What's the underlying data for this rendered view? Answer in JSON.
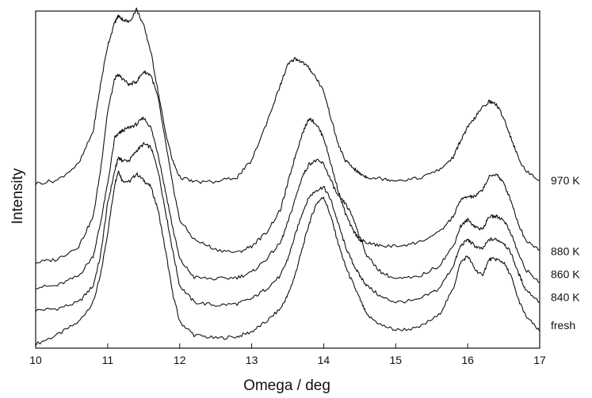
{
  "chart_data": {
    "type": "line",
    "xlabel": "Omega / deg",
    "ylabel": "Intensity",
    "xlim": [
      10,
      17
    ],
    "ylim": [
      0,
      100
    ],
    "x_ticks": [
      "10",
      "11",
      "12",
      "13",
      "14",
      "15",
      "16",
      "17"
    ],
    "grid": false,
    "legend": "right-side labels next to each curve",
    "x": [
      10.0,
      10.3,
      10.6,
      10.8,
      10.9,
      11.0,
      11.1,
      11.15,
      11.2,
      11.3,
      11.4,
      11.5,
      11.6,
      11.7,
      11.8,
      11.9,
      12.0,
      12.2,
      12.5,
      12.8,
      13.0,
      13.2,
      13.4,
      13.5,
      13.6,
      13.7,
      13.8,
      13.9,
      14.0,
      14.1,
      14.2,
      14.3,
      14.4,
      14.5,
      14.6,
      14.8,
      15.0,
      15.3,
      15.6,
      15.8,
      15.9,
      16.0,
      16.1,
      16.2,
      16.3,
      16.4,
      16.5,
      16.6,
      16.7,
      16.8,
      17.0
    ],
    "series": [
      {
        "name": "fresh",
        "values": [
          1.2,
          4.0,
          8.0,
          14.0,
          22.0,
          35.0,
          50.0,
          54.0,
          51.0,
          50.5,
          53.0,
          51.0,
          49.0,
          42.0,
          30.0,
          17.0,
          8.0,
          4.0,
          3.0,
          3.5,
          5.0,
          8.0,
          12.0,
          16.0,
          22.0,
          30.0,
          38.0,
          44.0,
          46.0,
          40.0,
          32.0,
          25.0,
          20.0,
          15.0,
          10.0,
          7.0,
          5.5,
          6.0,
          10.0,
          18.0,
          26.0,
          28.0,
          24.0,
          22.0,
          27.0,
          27.0,
          26.0,
          22.0,
          15.0,
          10.0,
          5.0
        ]
      },
      {
        "name": "840 K",
        "values": [
          11.5,
          12.0,
          14.0,
          19.0,
          28.0,
          44.0,
          54.0,
          58.0,
          57.0,
          57.0,
          60.0,
          62.0,
          61.0,
          54.0,
          42.0,
          30.0,
          19.0,
          14.0,
          13.0,
          13.5,
          15.0,
          18.0,
          22.0,
          27.0,
          34.0,
          41.0,
          46.0,
          48.0,
          49.0,
          45.0,
          38.0,
          31.0,
          26.0,
          22.0,
          19.0,
          15.5,
          14.0,
          14.5,
          18.0,
          25.0,
          31.0,
          33.0,
          31.0,
          30.0,
          33.0,
          33.0,
          32.0,
          29.0,
          23.0,
          18.0,
          14.0
        ]
      },
      {
        "name": "860 K",
        "values": [
          18.5,
          19.0,
          22.0,
          28.0,
          38.0,
          50.0,
          64.0,
          65.0,
          66.0,
          67.0,
          68.0,
          70.0,
          67.0,
          59.0,
          48.0,
          37.0,
          27.0,
          21.5,
          21.0,
          21.5,
          23.0,
          27.0,
          32.0,
          38.0,
          45.0,
          52.0,
          56.0,
          57.0,
          56.0,
          51.0,
          46.0,
          44.0,
          40.0,
          34.0,
          28.0,
          23.0,
          21.0,
          21.5,
          25.0,
          31.0,
          37.0,
          39.0,
          37.0,
          36.0,
          40.0,
          40.0,
          39.0,
          35.0,
          29.0,
          24.0,
          20.0
        ]
      },
      {
        "name": "880 K",
        "values": [
          26.0,
          27.0,
          31.0,
          40.0,
          54.0,
          72.0,
          82.0,
          83.0,
          82.0,
          80.0,
          81.0,
          84.0,
          83.0,
          76.0,
          63.0,
          50.0,
          39.0,
          33.0,
          30.0,
          29.0,
          31.0,
          35.0,
          42.0,
          50.0,
          58.0,
          65.0,
          70.0,
          68.0,
          64.0,
          56.0,
          48.0,
          41.0,
          36.0,
          33.0,
          32.0,
          31.0,
          31.0,
          32.0,
          35.0,
          40.0,
          45.0,
          46.0,
          46.0,
          48.0,
          52.0,
          53.0,
          50.0,
          45.0,
          38.0,
          33.0,
          30.0
        ]
      },
      {
        "name": "970 K",
        "values": [
          50.0,
          51.0,
          56.0,
          66.0,
          80.0,
          92.0,
          99.0,
          101.0,
          100.0,
          99.0,
          103.0,
          98.0,
          90.0,
          78.0,
          66.0,
          57.0,
          52.0,
          50.5,
          50.5,
          52.0,
          57.0,
          68.0,
          80.0,
          86.0,
          88.0,
          87.0,
          85.0,
          82.0,
          78.0,
          70.0,
          62.0,
          57.0,
          55.0,
          53.0,
          52.0,
          51.5,
          51.0,
          51.5,
          54.0,
          58.0,
          63.0,
          67.0,
          70.0,
          73.0,
          75.0,
          74.0,
          70.0,
          64.0,
          58.0,
          54.0,
          51.0
        ]
      }
    ],
    "series_label_values": [
      7.0,
      15.5,
      22.5,
      29.5,
      51.0
    ]
  }
}
